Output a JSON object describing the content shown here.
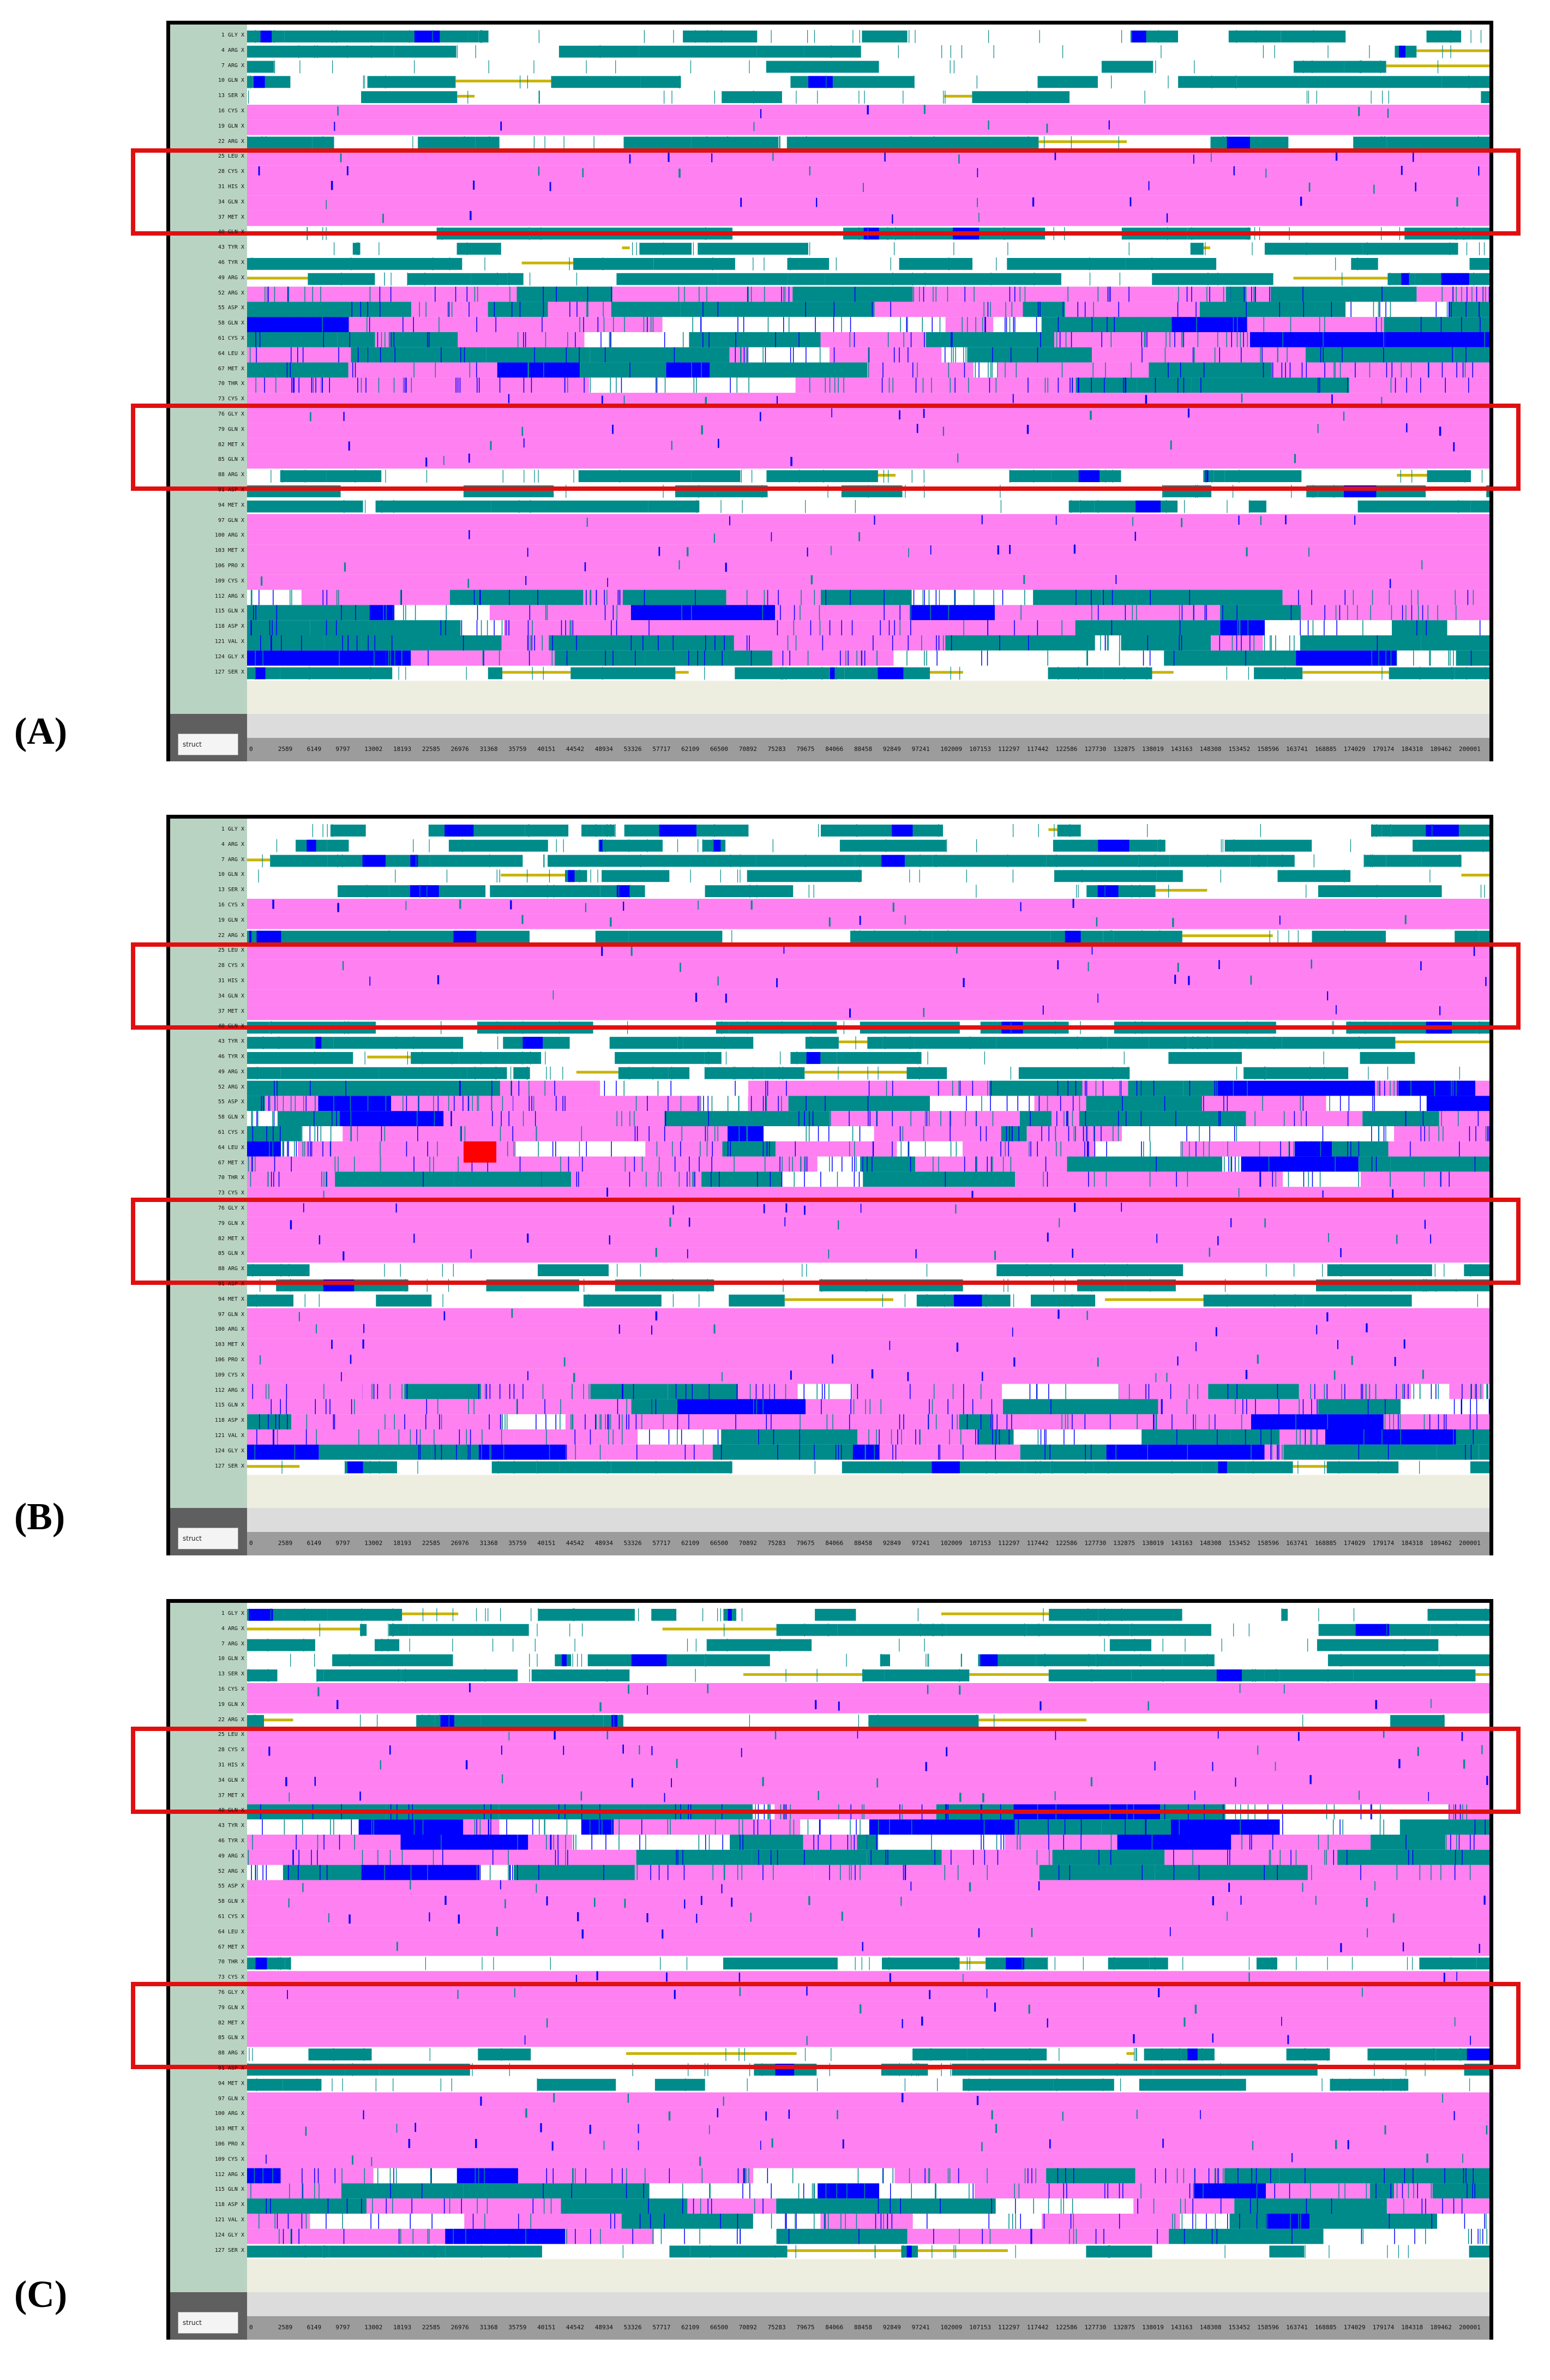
{
  "panels": [
    {
      "label": "(A)"
    },
    {
      "label": "(B)"
    },
    {
      "label": "(C)"
    }
  ],
  "struct_label": "struct",
  "residues": [
    "1 GLY X",
    "4 ARG X",
    "7 ARG X",
    "10 GLN X",
    "13 SER X",
    "16 CYS X",
    "19 GLN X",
    "22 ARG X",
    "25 LEU X",
    "28 CYS X",
    "31 HIS X",
    "34 GLN X",
    "37 MET X",
    "40 GLN X",
    "43 TYR X",
    "46 TYR X",
    "49 ARG X",
    "52 ARG X",
    "55 ASP X",
    "58 GLN X",
    "61 CYS X",
    "64 LEU X",
    "67 MET X",
    "70 THR X",
    "73 CYS X",
    "76 GLY X",
    "79 GLN X",
    "82 MET X",
    "85 GLN X",
    "88 ARG X",
    "91 ASP X",
    "94 MET X",
    "97 GLN X",
    "100 ARG X",
    "103 MET X",
    "106 PRO X",
    "109 CYS X",
    "112 ARG X",
    "115 GLN X",
    "118 ASP X",
    "121 VAL X",
    "124 GLY X",
    "127 SER X"
  ],
  "frame_ticks": [
    "0",
    "2589",
    "6149",
    "9797",
    "13002",
    "18193",
    "22585",
    "26976",
    "31368",
    "35759",
    "40151",
    "44542",
    "48934",
    "53326",
    "57717",
    "62109",
    "66500",
    "70892",
    "75283",
    "79675",
    "84066",
    "88458",
    "92849",
    "97241",
    "102009",
    "107153",
    "112297",
    "117442",
    "122586",
    "127730",
    "132875",
    "138019",
    "143163",
    "148308",
    "153452",
    "158596",
    "163741",
    "168885",
    "174029",
    "179174",
    "184318",
    "189462",
    "200001"
  ],
  "colors": {
    "helix": "#ff80f0",
    "turn": "#008b8b",
    "three_ten_helix": "#0000ff",
    "bridge": "#c8b400",
    "pi_helix": "#ff0000",
    "coil": "#ffffff",
    "highlight": "#e01010"
  }
}
